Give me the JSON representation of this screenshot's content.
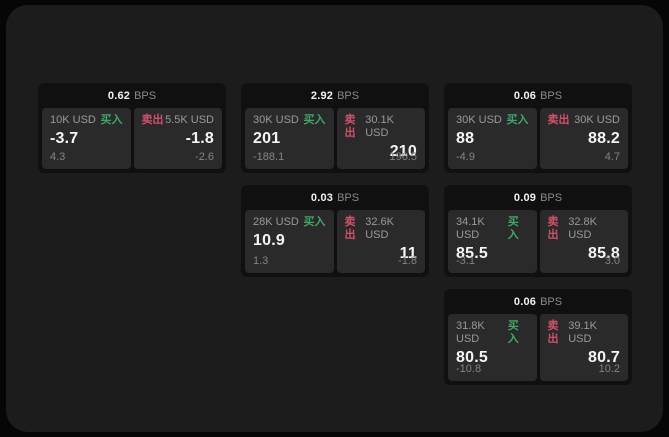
{
  "colors": {
    "outer_bg": "#060606",
    "window_bg": "#1c1c1d",
    "card_bg": "#101011",
    "panel_bg": "#2a2a2b",
    "buy_green": "#40a566",
    "sell_red": "#d15068",
    "value_white": "#f5f5f5",
    "label_gray": "#9a9a9a"
  },
  "labels": {
    "bps": "BPS",
    "buy": "买入",
    "sell": "卖出"
  },
  "cards": [
    {
      "bps": "0.62",
      "row": 1,
      "col": 1,
      "buy": {
        "amount": "10K USD",
        "value": "-3.7",
        "delta": "4.3"
      },
      "sell": {
        "amount": "5.5K USD",
        "value": "-1.8",
        "delta": "-2.6"
      }
    },
    {
      "bps": "2.92",
      "row": 1,
      "col": 2,
      "buy": {
        "amount": "30K USD",
        "value": "201",
        "delta": "-188.1"
      },
      "sell": {
        "amount": "30.1K USD",
        "value": "210",
        "delta": "196.5"
      }
    },
    {
      "bps": "0.06",
      "row": 1,
      "col": 3,
      "buy": {
        "amount": "30K USD",
        "value": "88",
        "delta": "-4.9"
      },
      "sell": {
        "amount": "30K USD",
        "value": "88.2",
        "delta": "4.7"
      }
    },
    {
      "bps": "0.03",
      "row": 2,
      "col": 2,
      "buy": {
        "amount": "28K USD",
        "value": "10.9",
        "delta": "1.3"
      },
      "sell": {
        "amount": "32.6K USD",
        "value": "11",
        "delta": "-1.8"
      }
    },
    {
      "bps": "0.09",
      "row": 2,
      "col": 3,
      "buy": {
        "amount": "34.1K USD",
        "value": "85.5",
        "delta": "-3.1"
      },
      "sell": {
        "amount": "32.8K USD",
        "value": "85.8",
        "delta": "3.0"
      }
    },
    {
      "bps": "0.06",
      "row": 3,
      "col": 3,
      "buy": {
        "amount": "31.8K USD",
        "value": "80.5",
        "delta": "-10.8"
      },
      "sell": {
        "amount": "39.1K USD",
        "value": "80.7",
        "delta": "10.2"
      }
    }
  ]
}
